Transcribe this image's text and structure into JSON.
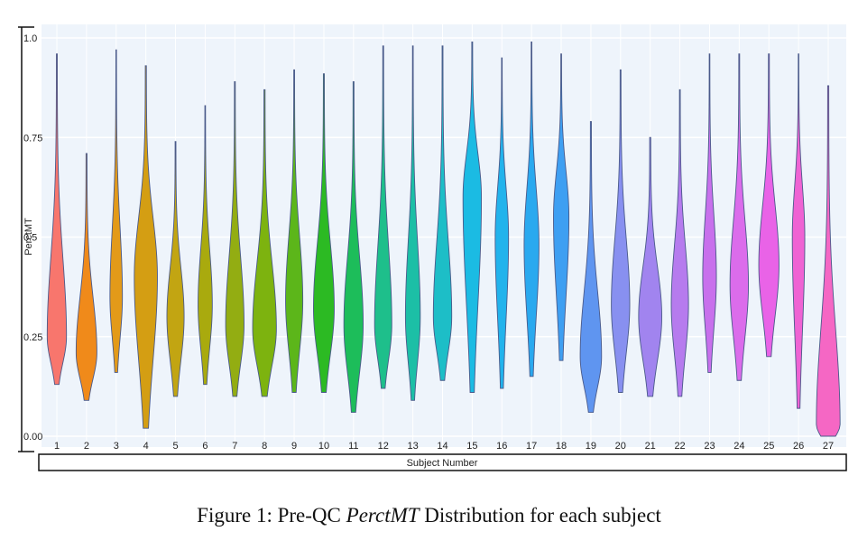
{
  "chart_data": {
    "type": "violin",
    "xlabel": "Subject Number",
    "ylabel": "PerctMT",
    "ylim": [
      0,
      1
    ],
    "yticks": [
      "0.00",
      "0.25",
      "0.5",
      "0.75",
      "1.0"
    ],
    "ytick_values": [
      0,
      0.25,
      0.5,
      0.75,
      1.0
    ],
    "grid": true,
    "legend": "none",
    "categories": [
      "1",
      "2",
      "3",
      "4",
      "5",
      "6",
      "7",
      "8",
      "9",
      "10",
      "11",
      "12",
      "13",
      "14",
      "15",
      "16",
      "17",
      "18",
      "19",
      "20",
      "21",
      "22",
      "23",
      "24",
      "25",
      "26",
      "27"
    ],
    "series": [
      {
        "min": 0.13,
        "max": 0.96,
        "mode": 0.25,
        "width": 0.65,
        "color": "#f8766d"
      },
      {
        "min": 0.09,
        "max": 0.71,
        "mode": 0.21,
        "width": 0.7,
        "color": "#f08a1a"
      },
      {
        "min": 0.16,
        "max": 0.97,
        "mode": 0.35,
        "width": 0.42,
        "color": "#e39a19"
      },
      {
        "min": 0.02,
        "max": 0.93,
        "mode": 0.4,
        "width": 0.78,
        "color": "#d49e13"
      },
      {
        "min": 0.1,
        "max": 0.74,
        "mode": 0.3,
        "width": 0.58,
        "color": "#c2a512"
      },
      {
        "min": 0.13,
        "max": 0.83,
        "mode": 0.33,
        "width": 0.48,
        "color": "#a9aa0e"
      },
      {
        "min": 0.1,
        "max": 0.89,
        "mode": 0.28,
        "width": 0.62,
        "color": "#93ad12"
      },
      {
        "min": 0.1,
        "max": 0.87,
        "mode": 0.27,
        "width": 0.8,
        "color": "#7db30f"
      },
      {
        "min": 0.11,
        "max": 0.92,
        "mode": 0.34,
        "width": 0.58,
        "color": "#5cb61a"
      },
      {
        "min": 0.11,
        "max": 0.91,
        "mode": 0.32,
        "width": 0.7,
        "color": "#2cba23"
      },
      {
        "min": 0.06,
        "max": 0.89,
        "mode": 0.28,
        "width": 0.65,
        "color": "#1dbd5a"
      },
      {
        "min": 0.12,
        "max": 0.98,
        "mode": 0.28,
        "width": 0.58,
        "color": "#1ebf8b"
      },
      {
        "min": 0.09,
        "max": 0.98,
        "mode": 0.3,
        "width": 0.5,
        "color": "#1cbfa6"
      },
      {
        "min": 0.14,
        "max": 0.98,
        "mode": 0.3,
        "width": 0.62,
        "color": "#1dbec7"
      },
      {
        "min": 0.11,
        "max": 0.99,
        "mode": 0.6,
        "width": 0.62,
        "color": "#1bbbe3"
      },
      {
        "min": 0.12,
        "max": 0.95,
        "mode": 0.5,
        "width": 0.45,
        "color": "#22b3ec"
      },
      {
        "min": 0.15,
        "max": 0.99,
        "mode": 0.48,
        "width": 0.5,
        "color": "#2aa9ef"
      },
      {
        "min": 0.19,
        "max": 0.96,
        "mode": 0.55,
        "width": 0.52,
        "color": "#3e9ff2"
      },
      {
        "min": 0.06,
        "max": 0.79,
        "mode": 0.2,
        "width": 0.72,
        "color": "#5f95f0"
      },
      {
        "min": 0.11,
        "max": 0.92,
        "mode": 0.33,
        "width": 0.62,
        "color": "#8890f0"
      },
      {
        "min": 0.1,
        "max": 0.75,
        "mode": 0.3,
        "width": 0.78,
        "color": "#a184ef"
      },
      {
        "min": 0.1,
        "max": 0.87,
        "mode": 0.33,
        "width": 0.58,
        "color": "#b67bee"
      },
      {
        "min": 0.16,
        "max": 0.96,
        "mode": 0.4,
        "width": 0.46,
        "color": "#c870ec"
      },
      {
        "min": 0.14,
        "max": 0.96,
        "mode": 0.38,
        "width": 0.62,
        "color": "#db6ceb"
      },
      {
        "min": 0.2,
        "max": 0.96,
        "mode": 0.43,
        "width": 0.68,
        "color": "#e963e7"
      },
      {
        "min": 0.07,
        "max": 0.96,
        "mode": 0.5,
        "width": 0.42,
        "color": "#ef63d3"
      },
      {
        "min": 0.0,
        "max": 0.88,
        "mode": 0.03,
        "width": 0.8,
        "color": "#f567c4"
      }
    ]
  },
  "caption": {
    "prefix": "Figure 1: Pre-QC ",
    "emph": "PerctMT",
    "suffix": " Distribution for each subject"
  }
}
